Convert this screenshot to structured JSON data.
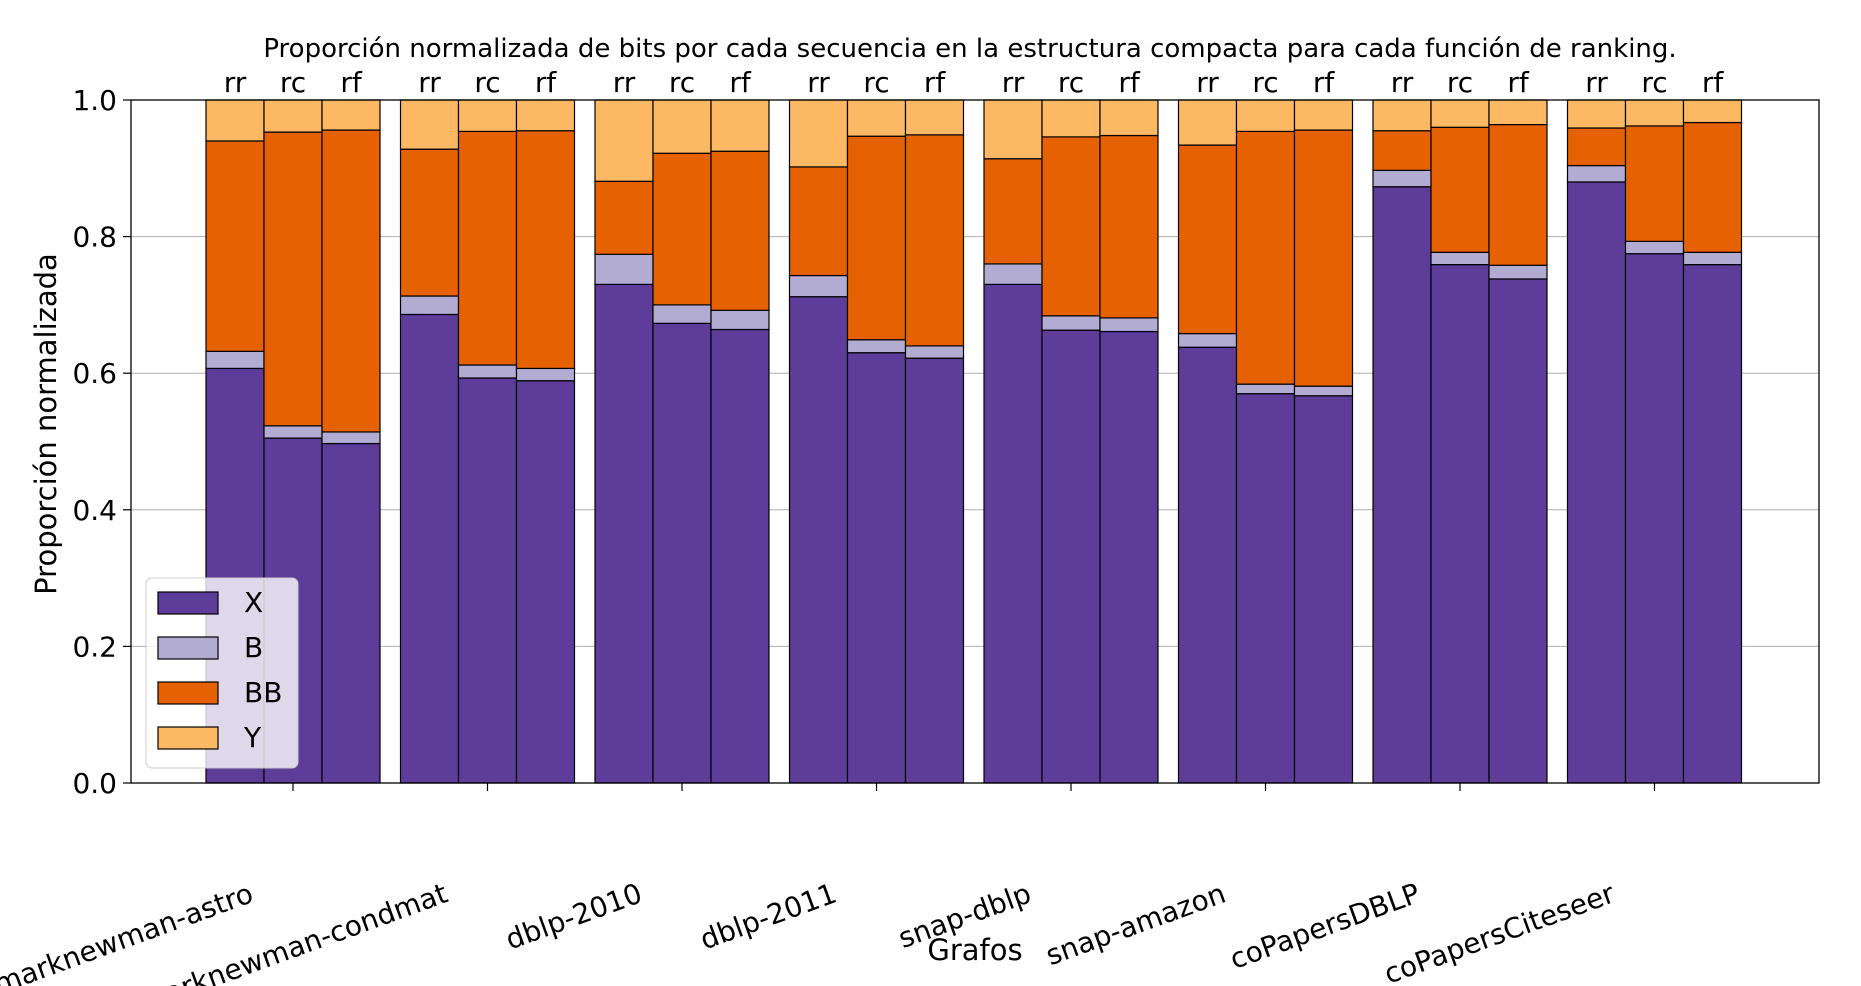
{
  "chart_data": {
    "type": "bar",
    "stacked": true,
    "title": "Proporción normalizada de bits por cada secuencia en la estructura compacta para cada función de ranking.",
    "xlabel": "Grafos",
    "ylabel": "Proporción normalizada",
    "ylim": [
      0.0,
      1.0
    ],
    "yticks": [
      "0.0",
      "0.2",
      "0.4",
      "0.6",
      "0.8",
      "1.0"
    ],
    "grid": "horizontal",
    "legend_position": "lower-left",
    "bar_labels": [
      "rr",
      "rc",
      "rf"
    ],
    "categories": [
      "marknewman-astro",
      "marknewman-condmat",
      "dblp-2010",
      "dblp-2011",
      "snap-dblp",
      "snap-amazon",
      "coPapersDBLP",
      "coPapersCiteseer"
    ],
    "series": [
      {
        "name": "X",
        "color": "#5e3c99",
        "values": [
          [
            0.607,
            0.505,
            0.497
          ],
          [
            0.686,
            0.593,
            0.589
          ],
          [
            0.73,
            0.673,
            0.664
          ],
          [
            0.712,
            0.63,
            0.622
          ],
          [
            0.73,
            0.663,
            0.661
          ],
          [
            0.638,
            0.57,
            0.567
          ],
          [
            0.873,
            0.759,
            0.738
          ],
          [
            0.88,
            0.775,
            0.759
          ]
        ]
      },
      {
        "name": "B",
        "color": "#b2abd2",
        "values": [
          [
            0.025,
            0.018,
            0.017
          ],
          [
            0.027,
            0.019,
            0.018
          ],
          [
            0.044,
            0.027,
            0.028
          ],
          [
            0.031,
            0.019,
            0.018
          ],
          [
            0.03,
            0.021,
            0.02
          ],
          [
            0.02,
            0.014,
            0.014
          ],
          [
            0.024,
            0.018,
            0.02
          ],
          [
            0.024,
            0.018,
            0.018
          ]
        ]
      },
      {
        "name": "BB",
        "color": "#e66101",
        "values": [
          [
            0.308,
            0.43,
            0.442
          ],
          [
            0.215,
            0.342,
            0.348
          ],
          [
            0.107,
            0.222,
            0.233
          ],
          [
            0.159,
            0.298,
            0.309
          ],
          [
            0.154,
            0.262,
            0.267
          ],
          [
            0.276,
            0.37,
            0.375
          ],
          [
            0.058,
            0.183,
            0.206
          ],
          [
            0.055,
            0.169,
            0.19
          ]
        ]
      },
      {
        "name": "Y",
        "color": "#fdb863",
        "values": [
          [
            0.06,
            0.047,
            0.044
          ],
          [
            0.072,
            0.046,
            0.045
          ],
          [
            0.119,
            0.078,
            0.075
          ],
          [
            0.098,
            0.053,
            0.051
          ],
          [
            0.086,
            0.054,
            0.052
          ],
          [
            0.066,
            0.046,
            0.044
          ],
          [
            0.045,
            0.04,
            0.036
          ],
          [
            0.041,
            0.038,
            0.033
          ]
        ]
      }
    ]
  }
}
